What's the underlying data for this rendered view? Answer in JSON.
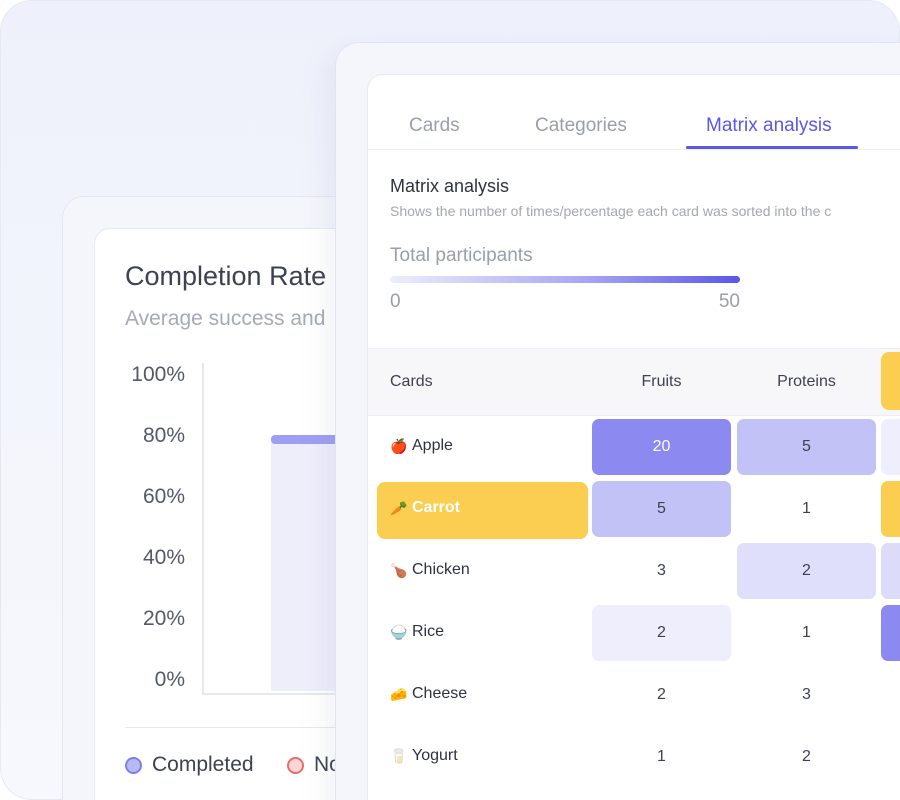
{
  "completion_card": {
    "title": "Completion Rate",
    "subtitle": "Average success and",
    "y_ticks": [
      "100%",
      "80%",
      "60%",
      "40%",
      "20%",
      "0%"
    ],
    "bar_value_percent": 80,
    "legend": [
      {
        "label": "Completed",
        "color": "#b9baf5",
        "border": "#7f80e6"
      },
      {
        "label": "Not",
        "color": "#fbd6d6",
        "border": "#e86d6d"
      }
    ],
    "bar_color": "#eeeefb",
    "bar_top_color": "#9d9ff2"
  },
  "matrix_card": {
    "tabs": [
      {
        "label": "Cards",
        "active": false
      },
      {
        "label": "Categories",
        "active": false
      },
      {
        "label": "Matrix analysis",
        "active": true
      }
    ],
    "title": "Matrix analysis",
    "description": "Shows the number of times/percentage each card was sorted into the c",
    "total_participants": {
      "label": "Total participants",
      "min": "0",
      "max": "50"
    },
    "columns": [
      "Cards",
      "Fruits",
      "Proteins"
    ],
    "rows": [
      {
        "emoji": "🍎",
        "label": "Apple",
        "values": [
          "20",
          "5"
        ]
      },
      {
        "emoji": "🥕",
        "label": "Carrot",
        "values": [
          "5",
          "1"
        ],
        "highlighted": true
      },
      {
        "emoji": "🍗",
        "label": "Chicken",
        "values": [
          "3",
          "2"
        ]
      },
      {
        "emoji": "🍚",
        "label": "Rice",
        "values": [
          "2",
          "1"
        ]
      },
      {
        "emoji": "🧀",
        "label": "Cheese",
        "values": [
          "2",
          "3"
        ]
      },
      {
        "emoji": "🥛",
        "label": "Yogurt",
        "values": [
          "1",
          "2"
        ]
      }
    ],
    "accent_color": "#5a57e6",
    "highlight_color": "#fbcd50"
  }
}
